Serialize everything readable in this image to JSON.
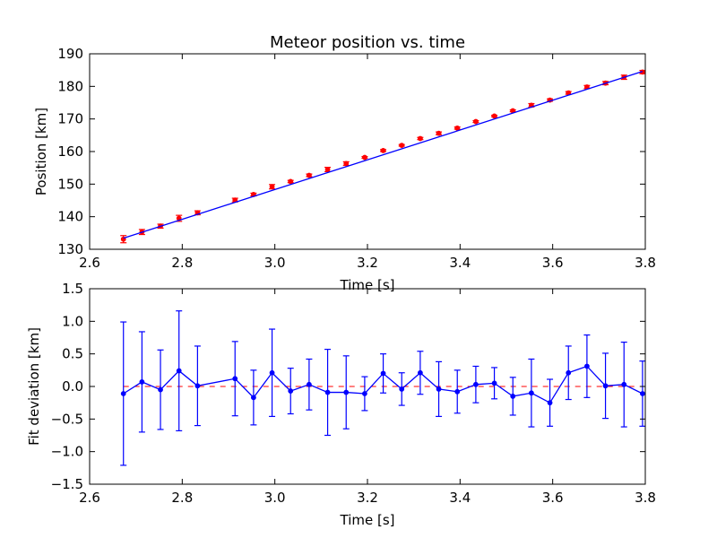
{
  "chart_data": [
    {
      "type": "scatter",
      "title": "Meteor position vs. time",
      "xlabel": "Time [s]",
      "ylabel": "Position [km]",
      "xlim": [
        2.6,
        3.8
      ],
      "ylim": [
        130,
        190
      ],
      "x_ticks": [
        "2.6",
        "2.8",
        "3.0",
        "3.2",
        "3.4",
        "3.6",
        "3.8"
      ],
      "y_ticks": [
        "130",
        "140",
        "150",
        "160",
        "170",
        "180",
        "190"
      ],
      "grid": false,
      "series": [
        {
          "kind": "points-with-errorbars",
          "color": "#ff0000",
          "x": [
            2.673,
            2.713,
            2.753,
            2.793,
            2.833,
            2.914,
            2.954,
            2.994,
            3.034,
            3.074,
            3.114,
            3.154,
            3.194,
            3.234,
            3.274,
            3.314,
            3.354,
            3.394,
            3.434,
            3.474,
            3.514,
            3.554,
            3.594,
            3.634,
            3.674,
            3.714,
            3.754,
            3.794
          ],
          "y": [
            133.1,
            135.3,
            137.1,
            139.5,
            141.2,
            145.1,
            146.8,
            149.2,
            150.8,
            152.7,
            154.5,
            156.3,
            158.2,
            160.3,
            161.9,
            164.0,
            165.6,
            167.2,
            169.2,
            170.9,
            172.5,
            174.2,
            175.8,
            178.0,
            179.8,
            181.0,
            182.8,
            184.4
          ],
          "err": [
            1.1,
            0.77,
            0.61,
            0.92,
            0.61,
            0.57,
            0.42,
            0.67,
            0.35,
            0.39,
            0.66,
            0.56,
            0.26,
            0.3,
            0.25,
            0.33,
            0.42,
            0.33,
            0.28,
            0.24,
            0.29,
            0.52,
            0.36,
            0.41,
            0.48,
            0.5,
            0.65,
            0.5
          ]
        },
        {
          "kind": "fit-line",
          "color": "#0000ff",
          "x": [
            2.673,
            3.794
          ],
          "y": [
            133.4,
            184.6
          ]
        }
      ]
    },
    {
      "type": "line",
      "title": "",
      "xlabel": "Time [s]",
      "ylabel": "Fit deviation [km]",
      "xlim": [
        2.6,
        3.8
      ],
      "ylim": [
        -1.5,
        1.5
      ],
      "x_ticks": [
        "2.6",
        "2.8",
        "3.0",
        "3.2",
        "3.4",
        "3.6",
        "3.8"
      ],
      "y_ticks": [
        "−1.5",
        "−1.0",
        "−0.5",
        "0.0",
        "0.5",
        "1.0",
        "1.5"
      ],
      "grid": false,
      "reference_line": {
        "y": 0,
        "style": "dashed",
        "color": "#ff0000"
      },
      "series": [
        {
          "kind": "line-with-errorbars",
          "color": "#0000ff",
          "x": [
            2.673,
            2.713,
            2.753,
            2.793,
            2.833,
            2.914,
            2.954,
            2.994,
            3.034,
            3.074,
            3.114,
            3.154,
            3.194,
            3.234,
            3.274,
            3.314,
            3.354,
            3.394,
            3.434,
            3.474,
            3.514,
            3.554,
            3.594,
            3.634,
            3.674,
            3.714,
            3.754,
            3.794
          ],
          "y": [
            -0.11,
            0.07,
            -0.05,
            0.24,
            0.01,
            0.12,
            -0.17,
            0.21,
            -0.07,
            0.03,
            -0.09,
            -0.09,
            -0.11,
            0.2,
            -0.04,
            0.21,
            -0.04,
            -0.08,
            0.03,
            0.05,
            -0.15,
            -0.1,
            -0.25,
            0.21,
            0.31,
            0.01,
            0.03,
            -0.11
          ],
          "err": [
            1.1,
            0.77,
            0.61,
            0.92,
            0.61,
            0.57,
            0.42,
            0.67,
            0.35,
            0.39,
            0.66,
            0.56,
            0.26,
            0.3,
            0.25,
            0.33,
            0.42,
            0.33,
            0.28,
            0.24,
            0.29,
            0.52,
            0.36,
            0.41,
            0.48,
            0.5,
            0.65,
            0.5
          ]
        }
      ]
    }
  ]
}
